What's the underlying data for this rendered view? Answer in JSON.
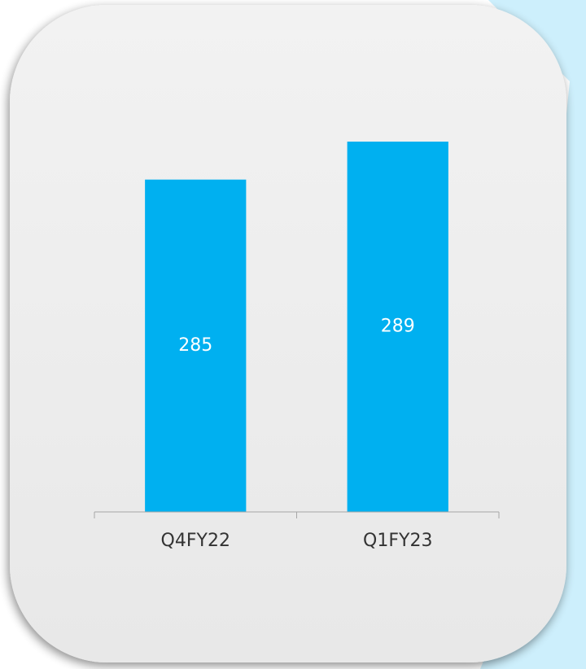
{
  "chart_data": {
    "type": "bar",
    "categories": [
      "Q4FY22",
      "Q1FY23"
    ],
    "values": [
      285,
      289
    ],
    "color": "#00b0f0",
    "ylim": [
      250,
      295
    ]
  }
}
